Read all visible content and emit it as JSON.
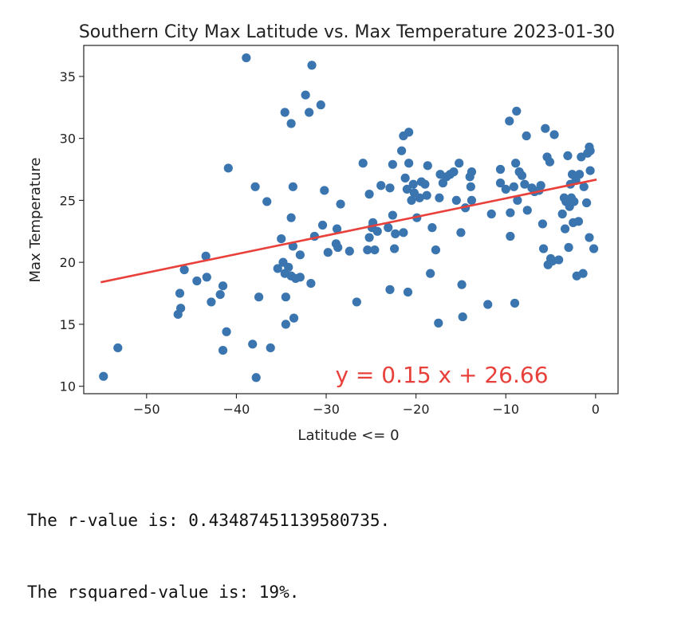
{
  "chart_data": {
    "type": "scatter",
    "title": "Southern City Max Latitude vs. Max Temperature 2023-01-30",
    "xlabel": "Latitude <= 0",
    "ylabel": "Max Temperature",
    "xlim": [
      -57,
      2.5
    ],
    "ylim": [
      9.4,
      37.5
    ],
    "x_ticks": [
      -50,
      -40,
      -30,
      -20,
      -10,
      0
    ],
    "y_ticks": [
      10,
      15,
      20,
      25,
      30,
      35
    ],
    "x_tick_labels": [
      "−50",
      "−40",
      "−30",
      "−20",
      "−10",
      "0"
    ],
    "y_tick_labels": [
      "10",
      "15",
      "20",
      "25",
      "30",
      "35"
    ],
    "grid": false,
    "colors": {
      "points": "#3A75AF",
      "regression": "#E8403A",
      "annotation": "#E8403A"
    },
    "points": [
      [
        -54.8,
        10.8
      ],
      [
        -53.2,
        13.1
      ],
      [
        -46.5,
        15.8
      ],
      [
        -46.2,
        16.3
      ],
      [
        -46.3,
        17.5
      ],
      [
        -45.8,
        19.4
      ],
      [
        -44.4,
        18.5
      ],
      [
        -43.4,
        20.5
      ],
      [
        -43.3,
        18.8
      ],
      [
        -42.8,
        16.8
      ],
      [
        -41.8,
        17.4
      ],
      [
        -41.5,
        18.1
      ],
      [
        -41.5,
        12.9
      ],
      [
        -41.1,
        14.4
      ],
      [
        -40.9,
        27.6
      ],
      [
        -38.9,
        36.5
      ],
      [
        -38.2,
        13.4
      ],
      [
        -37.9,
        26.1
      ],
      [
        -37.8,
        10.7
      ],
      [
        -37.5,
        17.2
      ],
      [
        -36.6,
        24.9
      ],
      [
        -36.2,
        13.1
      ],
      [
        -35.4,
        19.5
      ],
      [
        -35.0,
        21.9
      ],
      [
        -34.8,
        20.0
      ],
      [
        -34.6,
        19.1
      ],
      [
        -34.6,
        32.1
      ],
      [
        -34.5,
        15.0
      ],
      [
        -34.5,
        17.2
      ],
      [
        -34.2,
        19.6
      ],
      [
        -33.9,
        18.9
      ],
      [
        -33.9,
        31.2
      ],
      [
        -33.9,
        23.6
      ],
      [
        -33.7,
        26.1
      ],
      [
        -33.7,
        21.3
      ],
      [
        -33.6,
        15.5
      ],
      [
        -33.4,
        18.7
      ],
      [
        -32.9,
        20.6
      ],
      [
        -32.9,
        18.8
      ],
      [
        -32.3,
        33.5
      ],
      [
        -31.9,
        32.1
      ],
      [
        -31.7,
        18.3
      ],
      [
        -31.6,
        35.9
      ],
      [
        -31.3,
        22.1
      ],
      [
        -30.6,
        32.7
      ],
      [
        -30.4,
        23.0
      ],
      [
        -30.2,
        25.8
      ],
      [
        -29.8,
        20.8
      ],
      [
        -28.9,
        21.5
      ],
      [
        -28.8,
        22.7
      ],
      [
        -28.7,
        21.2
      ],
      [
        -28.4,
        24.7
      ],
      [
        -27.4,
        20.9
      ],
      [
        -26.6,
        16.8
      ],
      [
        -25.9,
        28.0
      ],
      [
        -25.4,
        21.0
      ],
      [
        -25.2,
        22.0
      ],
      [
        -25.2,
        25.5
      ],
      [
        -24.9,
        22.8
      ],
      [
        -24.8,
        23.2
      ],
      [
        -24.6,
        21.0
      ],
      [
        -24.3,
        22.5
      ],
      [
        -23.9,
        26.2
      ],
      [
        -23.1,
        22.8
      ],
      [
        -22.9,
        26.0
      ],
      [
        -22.9,
        17.8
      ],
      [
        -22.6,
        27.9
      ],
      [
        -22.6,
        23.8
      ],
      [
        -22.3,
        22.3
      ],
      [
        -22.4,
        21.1
      ],
      [
        -21.6,
        29.0
      ],
      [
        -21.4,
        30.2
      ],
      [
        -21.4,
        22.4
      ],
      [
        -21.2,
        26.8
      ],
      [
        -21.0,
        25.9
      ],
      [
        -20.9,
        17.6
      ],
      [
        -20.8,
        30.5
      ],
      [
        -20.8,
        28.0
      ],
      [
        -20.5,
        25.0
      ],
      [
        -20.3,
        26.3
      ],
      [
        -20.2,
        25.6
      ],
      [
        -19.9,
        23.6
      ],
      [
        -19.6,
        25.2
      ],
      [
        -19.4,
        26.5
      ],
      [
        -19.0,
        26.3
      ],
      [
        -18.8,
        25.4
      ],
      [
        -18.7,
        27.8
      ],
      [
        -18.4,
        19.1
      ],
      [
        -18.2,
        22.8
      ],
      [
        -17.8,
        21.0
      ],
      [
        -17.5,
        15.1
      ],
      [
        -17.4,
        25.2
      ],
      [
        -17.3,
        27.1
      ],
      [
        -17.0,
        26.4
      ],
      [
        -16.6,
        26.9
      ],
      [
        -16.2,
        27.1
      ],
      [
        -15.8,
        27.3
      ],
      [
        -15.5,
        25.0
      ],
      [
        -15.2,
        28.0
      ],
      [
        -15.0,
        22.4
      ],
      [
        -14.9,
        18.2
      ],
      [
        -14.8,
        15.6
      ],
      [
        -14.5,
        24.4
      ],
      [
        -14.0,
        26.9
      ],
      [
        -13.9,
        26.1
      ],
      [
        -13.8,
        27.3
      ],
      [
        -13.8,
        25.0
      ],
      [
        -12.0,
        16.6
      ],
      [
        -11.6,
        23.9
      ],
      [
        -10.6,
        27.5
      ],
      [
        -10.6,
        26.4
      ],
      [
        -10.0,
        25.9
      ],
      [
        -9.6,
        31.4
      ],
      [
        -9.5,
        22.1
      ],
      [
        -9.5,
        24.0
      ],
      [
        -9.1,
        26.1
      ],
      [
        -9.0,
        16.7
      ],
      [
        -8.9,
        28.0
      ],
      [
        -8.8,
        32.2
      ],
      [
        -8.7,
        25.0
      ],
      [
        -8.5,
        27.3
      ],
      [
        -8.2,
        27.0
      ],
      [
        -7.9,
        26.3
      ],
      [
        -7.7,
        30.2
      ],
      [
        -7.6,
        24.2
      ],
      [
        -7.1,
        26.0
      ],
      [
        -6.8,
        25.7
      ],
      [
        -6.3,
        25.8
      ],
      [
        -6.1,
        26.2
      ],
      [
        -5.9,
        23.1
      ],
      [
        -5.8,
        21.1
      ],
      [
        -5.6,
        30.8
      ],
      [
        -5.4,
        28.5
      ],
      [
        -5.3,
        19.8
      ],
      [
        -5.1,
        28.1
      ],
      [
        -5.0,
        20.3
      ],
      [
        -4.8,
        20.1
      ],
      [
        -4.6,
        30.3
      ],
      [
        -4.1,
        20.2
      ],
      [
        -3.7,
        23.9
      ],
      [
        -3.5,
        25.2
      ],
      [
        -3.4,
        22.7
      ],
      [
        -3.3,
        24.9
      ],
      [
        -3.1,
        28.6
      ],
      [
        -3.0,
        21.2
      ],
      [
        -2.9,
        24.5
      ],
      [
        -2.8,
        26.3
      ],
      [
        -2.7,
        25.2
      ],
      [
        -2.6,
        27.1
      ],
      [
        -2.5,
        23.2
      ],
      [
        -2.4,
        24.9
      ],
      [
        -2.2,
        26.6
      ],
      [
        -2.1,
        18.9
      ],
      [
        -1.9,
        23.3
      ],
      [
        -1.8,
        27.1
      ],
      [
        -1.6,
        28.5
      ],
      [
        -1.4,
        19.1
      ],
      [
        -1.3,
        26.1
      ],
      [
        -1.0,
        24.8
      ],
      [
        -0.9,
        28.8
      ],
      [
        -0.7,
        22.0
      ],
      [
        -0.7,
        29.3
      ],
      [
        -0.6,
        27.4
      ],
      [
        -0.6,
        29.0
      ],
      [
        -0.2,
        21.1
      ]
    ],
    "regression": {
      "slope": 0.15,
      "intercept": 26.66,
      "x_range": [
        -55,
        0
      ],
      "equation_label": "y = 0.15 x + 26.66"
    }
  },
  "output": {
    "line1": "The r-value is: 0.43487451139580735.",
    "line2": "The rsquared-value is: 19%."
  }
}
